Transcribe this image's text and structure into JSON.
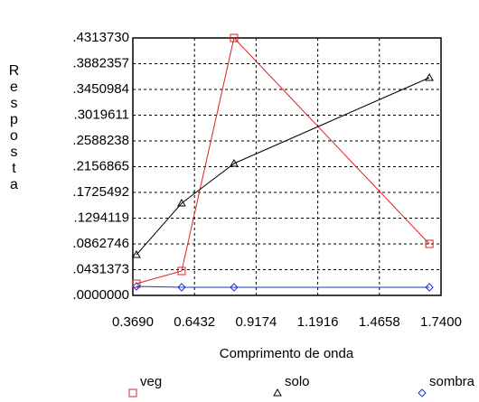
{
  "chart_data": {
    "type": "line",
    "x_label": "Comprimento de onda",
    "y_label": "Resposta",
    "xlim": [
      0.369,
      1.74
    ],
    "ylim": [
      0,
      0.431373
    ],
    "xticks": [
      {
        "value": 0.369,
        "label": "0.3690"
      },
      {
        "value": 0.6432,
        "label": "0.6432"
      },
      {
        "value": 0.9174,
        "label": "0.9174"
      },
      {
        "value": 1.1916,
        "label": "1.1916"
      },
      {
        "value": 1.4658,
        "label": "1.4658"
      },
      {
        "value": 1.74,
        "label": "1.7400"
      }
    ],
    "yticks": [
      {
        "value": 0,
        "label": ".0000000"
      },
      {
        "value": 0.0431373,
        "label": ".0431373"
      },
      {
        "value": 0.0862746,
        "label": ".0862746"
      },
      {
        "value": 0.1294119,
        "label": ".1294119"
      },
      {
        "value": 0.1725492,
        "label": ".1725492"
      },
      {
        "value": 0.2156865,
        "label": ".2156865"
      },
      {
        "value": 0.2588238,
        "label": ".2588238"
      },
      {
        "value": 0.3019611,
        "label": ".3019611"
      },
      {
        "value": 0.3450984,
        "label": ".3450984"
      },
      {
        "value": 0.3882357,
        "label": ".3882357"
      },
      {
        "value": 0.431373,
        "label": ".4313730"
      }
    ],
    "grid": true,
    "series": [
      {
        "name": "veg",
        "color": "#e02020",
        "marker": "square",
        "x": [
          0.385,
          0.586,
          0.819,
          1.688
        ],
        "values": [
          0.0197,
          0.0409,
          0.4314,
          0.0863
        ]
      },
      {
        "name": "solo",
        "color": "#000000",
        "marker": "triangle",
        "x": [
          0.385,
          0.586,
          0.819,
          1.688
        ],
        "values": [
          0.0681,
          0.1544,
          0.221,
          0.3648
        ]
      },
      {
        "name": "sombra",
        "color": "#2030d0",
        "marker": "diamond",
        "x": [
          0.385,
          0.586,
          0.819,
          1.688
        ],
        "values": [
          0.0151,
          0.0136,
          0.0136,
          0.0136
        ]
      }
    ]
  }
}
